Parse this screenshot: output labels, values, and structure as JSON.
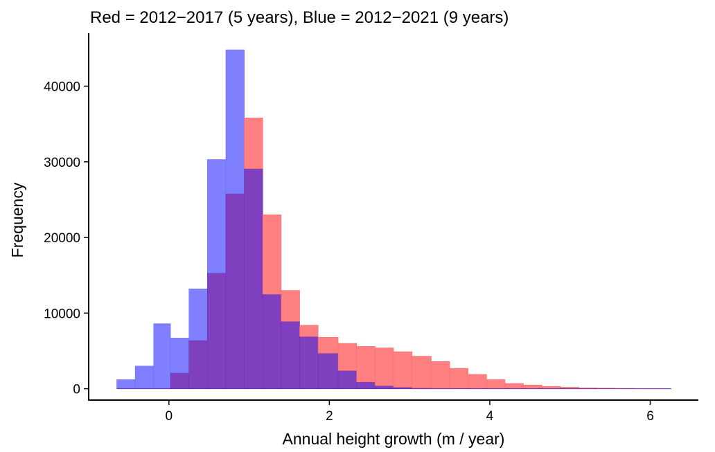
{
  "chart_data": {
    "type": "bar",
    "title": "Red = 2012−2017 (5 years), Blue = 2012−2021 (9 years)",
    "xlabel": "Annual height growth (m / year)",
    "ylabel": "Frequency",
    "xlim": [
      -1.0,
      6.6
    ],
    "ylim": [
      -1500,
      47000
    ],
    "xticks": [
      0,
      2,
      4,
      6
    ],
    "yticks": [
      0,
      10000,
      20000,
      30000,
      40000
    ],
    "grid": false,
    "colors": {
      "blue": "#8080ff",
      "red": "#ff8080",
      "overlap": "#7f40c0"
    },
    "bin_edges": [
      -0.65,
      -0.42,
      -0.19,
      0.02,
      0.25,
      0.48,
      0.71,
      0.94,
      1.17,
      1.4,
      1.63,
      1.86,
      2.11,
      2.34,
      2.57,
      2.8,
      3.03,
      3.27,
      3.5,
      3.73,
      3.96,
      4.19,
      4.42,
      4.65,
      4.88,
      5.11,
      5.34,
      5.57,
      5.8,
      6.03,
      6.26
    ],
    "series": [
      {
        "name": "Blue = 2012−2021 (9 years)",
        "color": "blue",
        "values": [
          1200,
          3000,
          8600,
          6700,
          13200,
          30300,
          44800,
          29100,
          12500,
          8900,
          6900,
          4700,
          2400,
          900,
          400,
          200,
          100,
          50,
          30,
          20,
          15,
          10,
          8,
          5,
          5,
          3,
          2,
          1,
          1,
          1
        ]
      },
      {
        "name": "Red = 2012−2017 (5 years)",
        "color": "red",
        "values": [
          0,
          0,
          0,
          2100,
          6400,
          15300,
          25800,
          35800,
          23000,
          13000,
          8400,
          6800,
          6000,
          5600,
          5400,
          4900,
          4300,
          3600,
          2700,
          1900,
          1200,
          700,
          500,
          300,
          200,
          120,
          80,
          50,
          30,
          20
        ]
      }
    ]
  }
}
